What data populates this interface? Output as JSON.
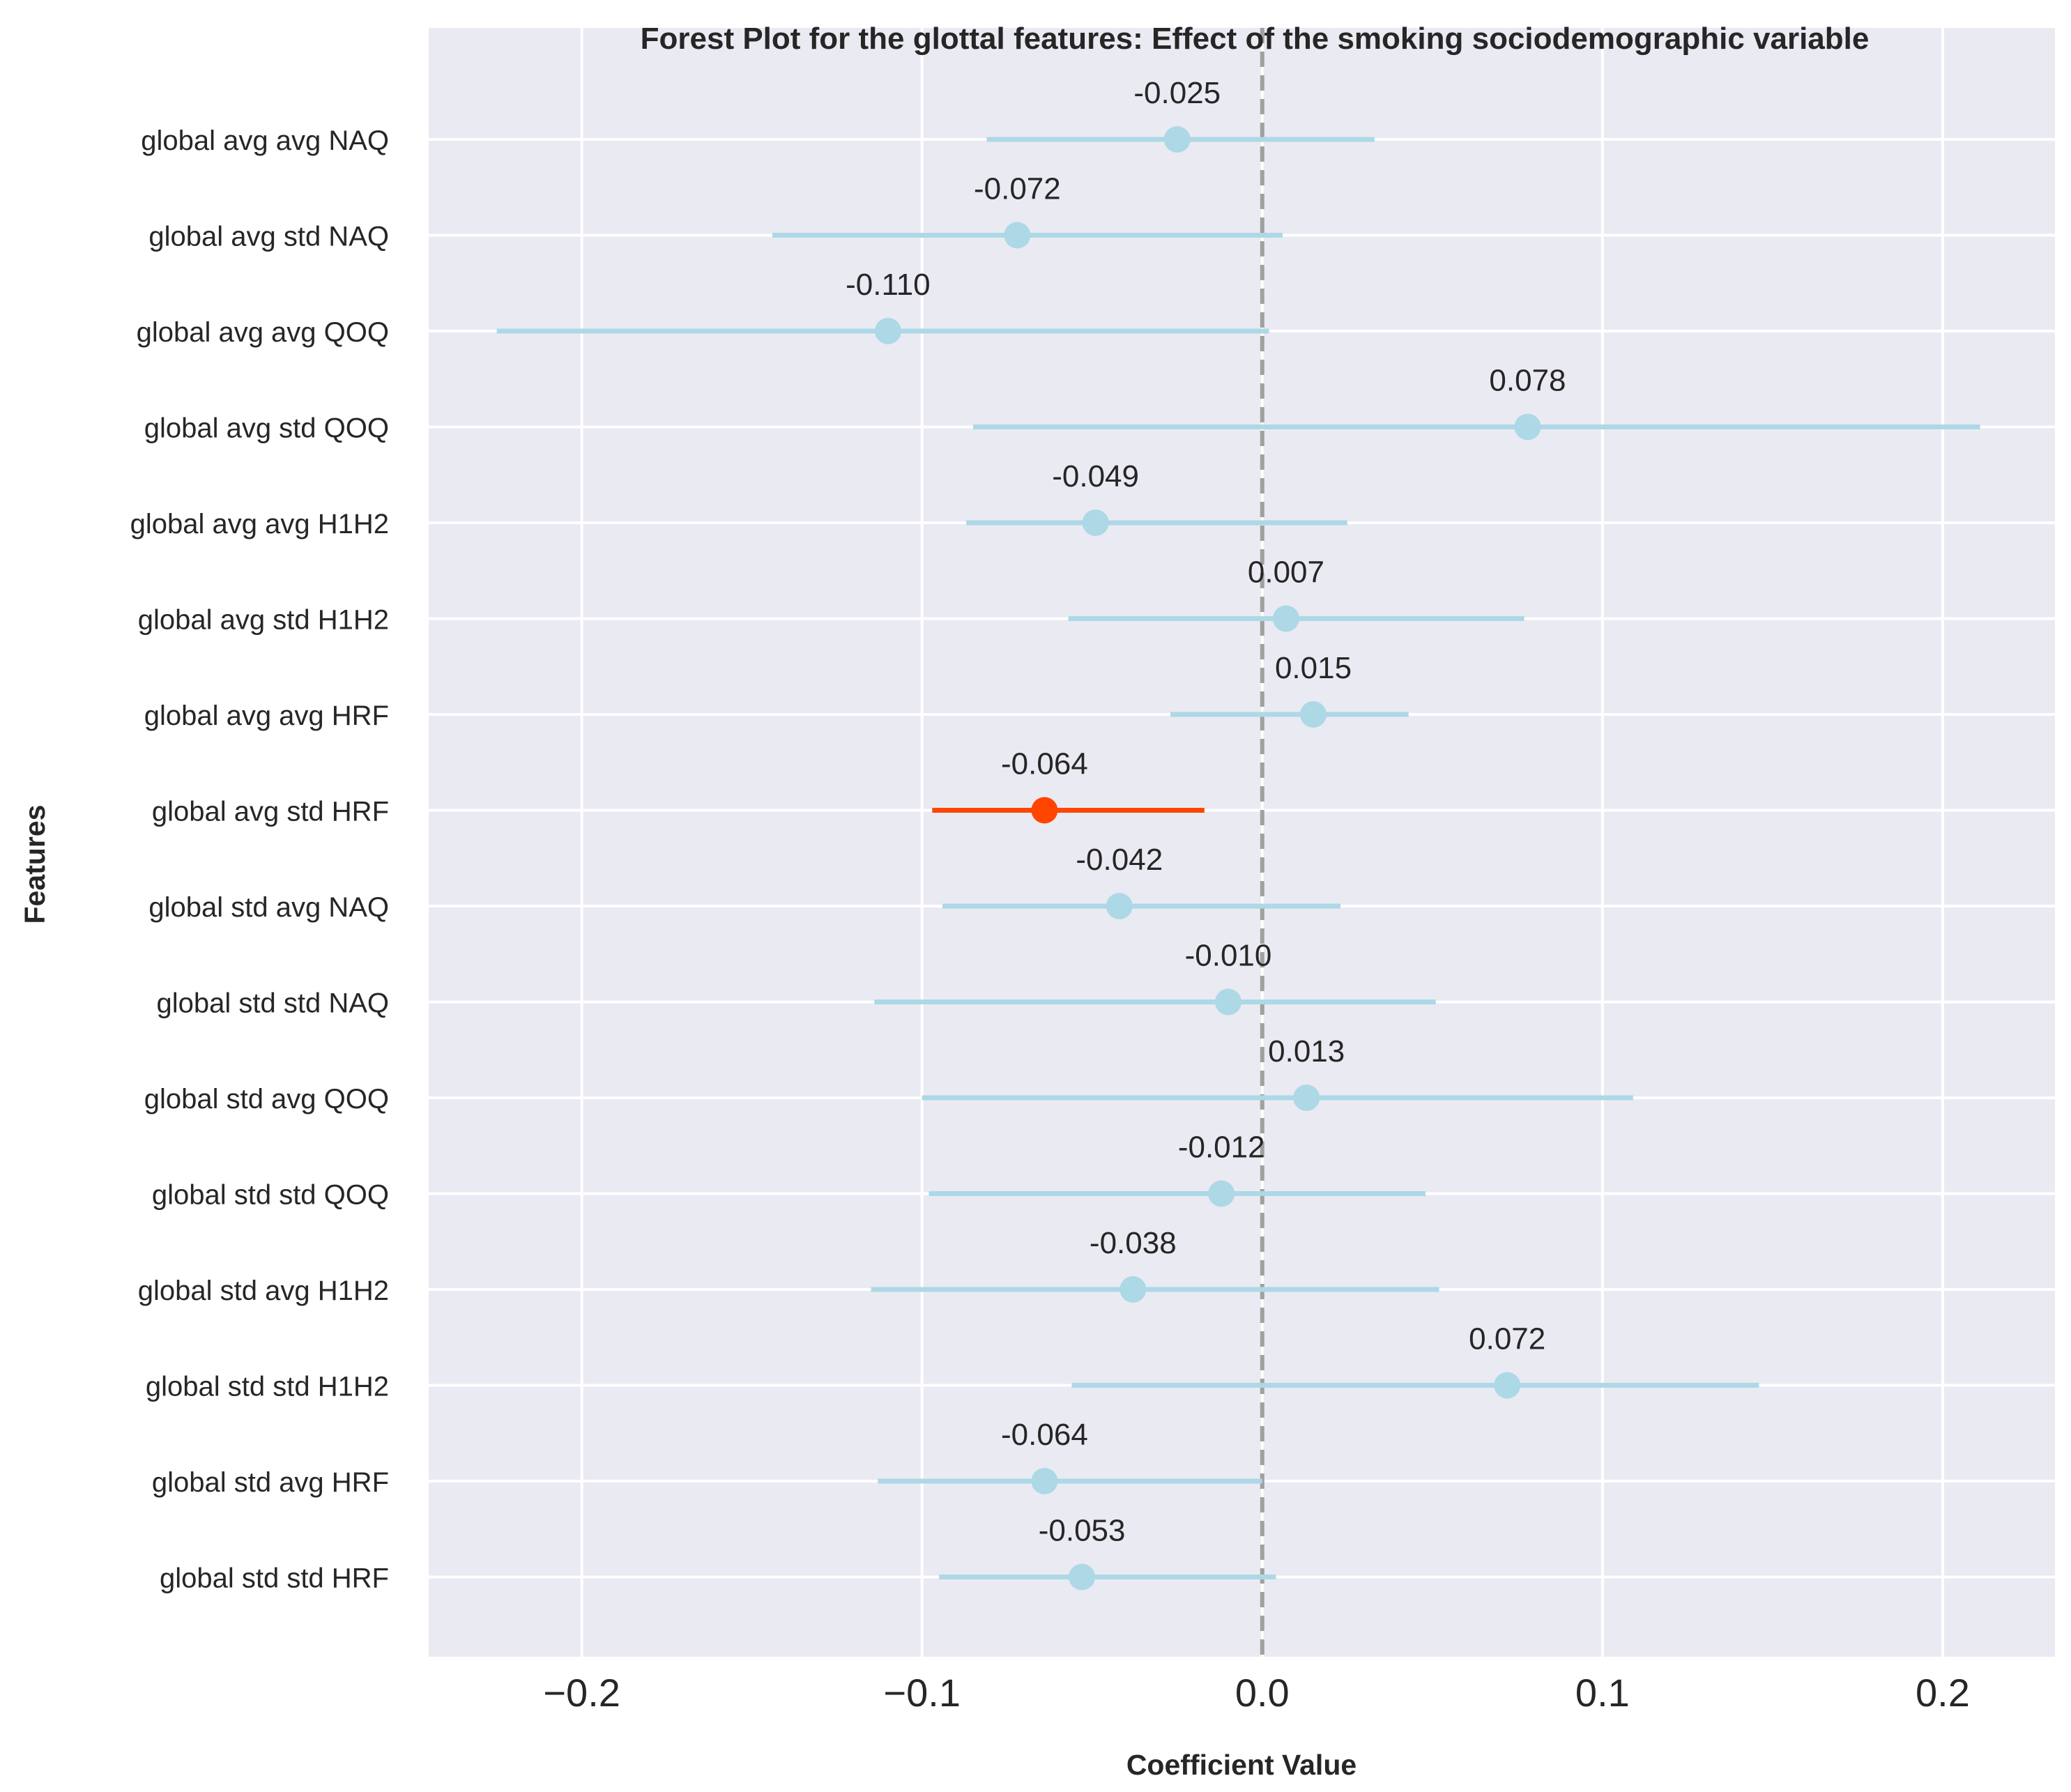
{
  "chart_data": {
    "type": "forest",
    "title": "Forest Plot for the glottal features: Effect of the smoking sociodemographic variable",
    "xlabel": "Coefficient Value",
    "ylabel": "Features",
    "xlim": [
      -0.245,
      0.233
    ],
    "xticks": [
      -0.2,
      -0.1,
      0.0,
      0.1,
      0.2
    ],
    "xtick_labels": [
      "−0.2",
      "−0.1",
      "0.0",
      "0.1",
      "0.2"
    ],
    "reference_line": 0.0,
    "grid": true,
    "colors": {
      "background": "#EAEAF2",
      "grid": "#FFFFFF",
      "default_series": "#ADD8E6",
      "highlight_series": "#FF4500",
      "reference_line": "#A0A0A0"
    },
    "points": [
      {
        "feature": "global avg avg NAQ",
        "coef": -0.025,
        "label": "-0.025",
        "ci": [
          -0.081,
          0.033
        ],
        "highlight": false
      },
      {
        "feature": "global avg std NAQ",
        "coef": -0.072,
        "label": "-0.072",
        "ci": [
          -0.144,
          0.006
        ],
        "highlight": false
      },
      {
        "feature": "global avg avg QOQ",
        "coef": -0.11,
        "label": "-0.110",
        "ci": [
          -0.225,
          0.002
        ],
        "highlight": false
      },
      {
        "feature": "global avg std QOQ",
        "coef": 0.078,
        "label": "0.078",
        "ci": [
          -0.085,
          0.211
        ],
        "highlight": false
      },
      {
        "feature": "global avg avg H1H2",
        "coef": -0.049,
        "label": "-0.049",
        "ci": [
          -0.087,
          0.025
        ],
        "highlight": false
      },
      {
        "feature": "global avg std H1H2",
        "coef": 0.007,
        "label": "0.007",
        "ci": [
          -0.057,
          0.077
        ],
        "highlight": false
      },
      {
        "feature": "global avg avg HRF",
        "coef": 0.015,
        "label": "0.015",
        "ci": [
          -0.027,
          0.043
        ],
        "highlight": false
      },
      {
        "feature": "global avg std HRF",
        "coef": -0.064,
        "label": "-0.064",
        "ci": [
          -0.097,
          -0.017
        ],
        "highlight": true
      },
      {
        "feature": "global std avg NAQ",
        "coef": -0.042,
        "label": "-0.042",
        "ci": [
          -0.094,
          0.023
        ],
        "highlight": false
      },
      {
        "feature": "global std std NAQ",
        "coef": -0.01,
        "label": "-0.010",
        "ci": [
          -0.114,
          0.051
        ],
        "highlight": false
      },
      {
        "feature": "global std avg QOQ",
        "coef": 0.013,
        "label": "0.013",
        "ci": [
          -0.1,
          0.109
        ],
        "highlight": false
      },
      {
        "feature": "global std std QOQ",
        "coef": -0.012,
        "label": "-0.012",
        "ci": [
          -0.098,
          0.048
        ],
        "highlight": false
      },
      {
        "feature": "global std avg H1H2",
        "coef": -0.038,
        "label": "-0.038",
        "ci": [
          -0.115,
          0.052
        ],
        "highlight": false
      },
      {
        "feature": "global std std H1H2",
        "coef": 0.072,
        "label": "0.072",
        "ci": [
          -0.056,
          0.146
        ],
        "highlight": false
      },
      {
        "feature": "global std avg HRF",
        "coef": -0.064,
        "label": "-0.064",
        "ci": [
          -0.113,
          0.0
        ],
        "highlight": false
      },
      {
        "feature": "global std std HRF",
        "coef": -0.053,
        "label": "-0.053",
        "ci": [
          -0.095,
          0.004
        ],
        "highlight": false
      }
    ]
  }
}
